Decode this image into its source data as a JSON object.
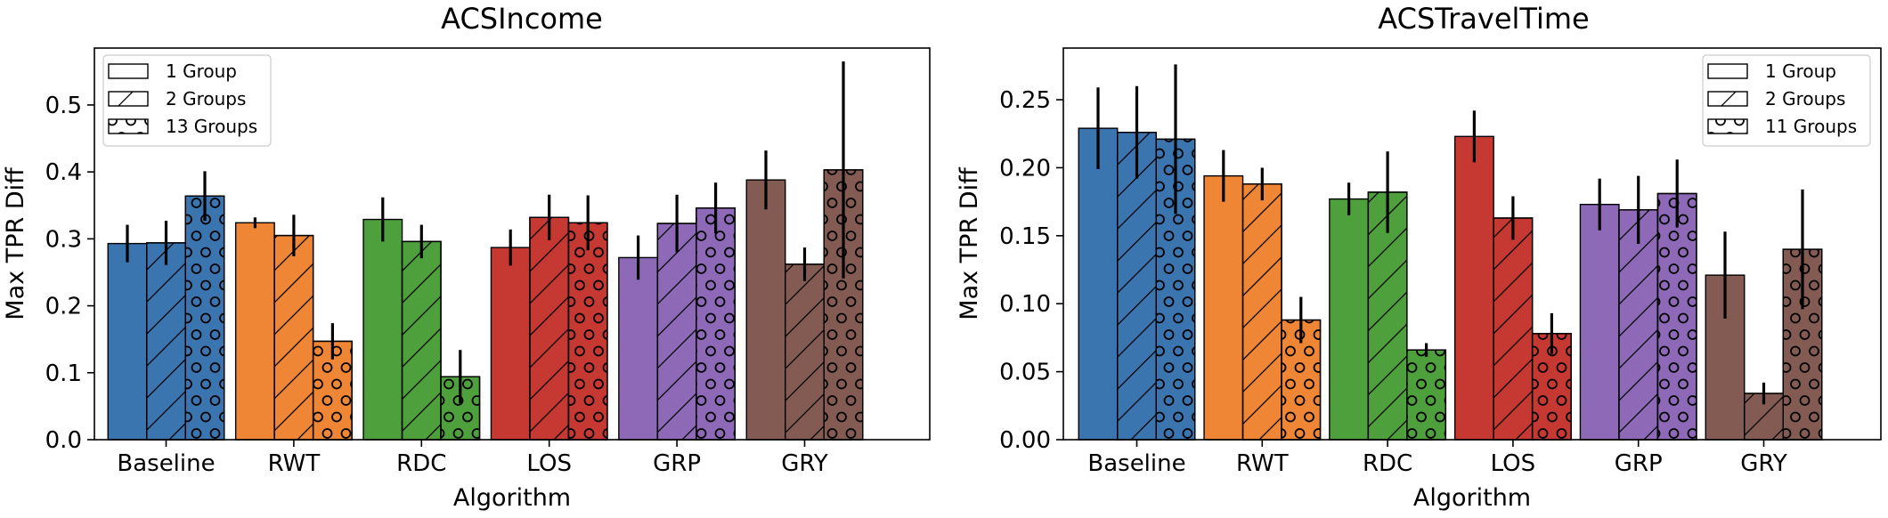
{
  "chart_data": [
    {
      "type": "bar",
      "title": "ACSIncome",
      "xlabel": "Algorithm",
      "ylabel": "Max TPR Diff",
      "categories": [
        "Baseline",
        "RWT",
        "RDC",
        "LOS",
        "GRP",
        "GRY"
      ],
      "colors": [
        "#3a75b0",
        "#ef8636",
        "#4ea03c",
        "#c53932",
        "#8d69b8",
        "#845b53"
      ],
      "hatches": [
        "none",
        "diagonal",
        "circles"
      ],
      "ylim": [
        0,
        0.585
      ],
      "yticks": [
        0.0,
        0.1,
        0.2,
        0.3,
        0.4,
        0.5
      ],
      "ytick_labels": [
        "0.0",
        "0.1",
        "0.2",
        "0.3",
        "0.4",
        "0.5"
      ],
      "legend_position": "top-left",
      "series": [
        {
          "name": "1 Group",
          "values": [
            0.293,
            0.324,
            0.329,
            0.287,
            0.272,
            0.388
          ],
          "errors": [
            0.028,
            0.008,
            0.033,
            0.027,
            0.033,
            0.044
          ]
        },
        {
          "name": "2 Groups",
          "values": [
            0.294,
            0.305,
            0.296,
            0.332,
            0.323,
            0.262
          ],
          "errors": [
            0.033,
            0.031,
            0.025,
            0.034,
            0.043,
            0.025
          ]
        },
        {
          "name": "13 Groups",
          "values": [
            0.364,
            0.147,
            0.094,
            0.324,
            0.346,
            0.403
          ],
          "errors": [
            0.037,
            0.027,
            0.04,
            0.041,
            0.038,
            0.162
          ]
        }
      ]
    },
    {
      "type": "bar",
      "title": "ACSTravelTime",
      "xlabel": "Algorithm",
      "ylabel": "Max TPR Diff",
      "categories": [
        "Baseline",
        "RWT",
        "RDC",
        "LOS",
        "GRP",
        "GRY"
      ],
      "colors": [
        "#3a75b0",
        "#ef8636",
        "#4ea03c",
        "#c53932",
        "#8d69b8",
        "#845b53"
      ],
      "hatches": [
        "none",
        "diagonal",
        "circles"
      ],
      "ylim": [
        0,
        0.288
      ],
      "yticks": [
        0.0,
        0.05,
        0.1,
        0.15,
        0.2,
        0.25
      ],
      "ytick_labels": [
        "0.00",
        "0.05",
        "0.10",
        "0.15",
        "0.20",
        "0.25"
      ],
      "legend_position": "top-right",
      "series": [
        {
          "name": "1 Group",
          "values": [
            0.229,
            0.194,
            0.177,
            0.223,
            0.173,
            0.121
          ],
          "errors": [
            0.03,
            0.019,
            0.012,
            0.019,
            0.019,
            0.032
          ]
        },
        {
          "name": "2 Groups",
          "values": [
            0.226,
            0.188,
            0.182,
            0.163,
            0.169,
            0.034
          ],
          "errors": [
            0.034,
            0.012,
            0.03,
            0.016,
            0.025,
            0.008
          ]
        },
        {
          "name": "11 Groups",
          "values": [
            0.221,
            0.088,
            0.066,
            0.078,
            0.181,
            0.14
          ],
          "errors": [
            0.055,
            0.017,
            0.005,
            0.015,
            0.025,
            0.044
          ]
        }
      ]
    }
  ]
}
